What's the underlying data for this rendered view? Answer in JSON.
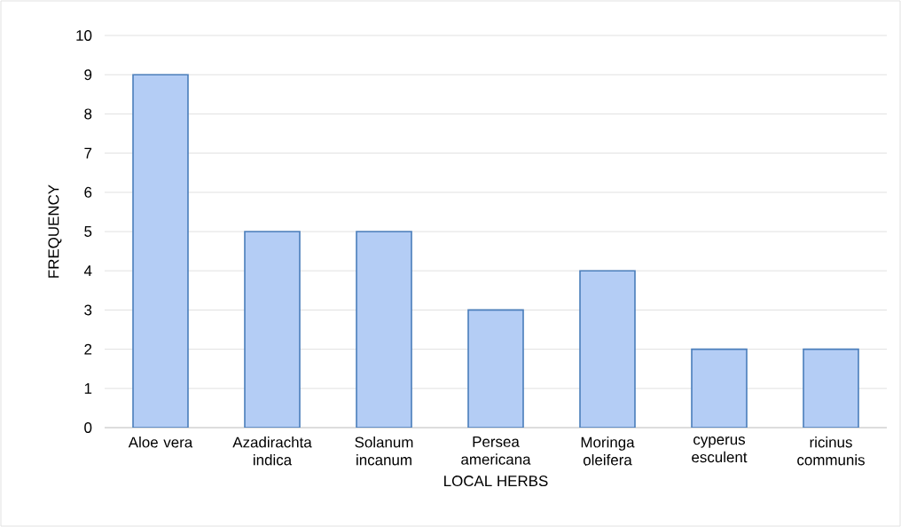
{
  "chart_data": {
    "type": "bar",
    "xlabel": "LOCAL HERBS",
    "ylabel": "FREQUENCY",
    "categories": [
      "Aloe vera",
      "Azadirachta indica",
      "Solanum incanum",
      "Persea americana",
      "Moringa oleifera",
      "cyperus esculent",
      "ricinus communis"
    ],
    "values": [
      9,
      5,
      5,
      3,
      4,
      2,
      2
    ],
    "color": "#b4cdf5",
    "ylim": [
      0,
      10
    ],
    "yticks": [
      0,
      1,
      2,
      3,
      4,
      5,
      6,
      7,
      8,
      9,
      10
    ],
    "grid": "y"
  }
}
